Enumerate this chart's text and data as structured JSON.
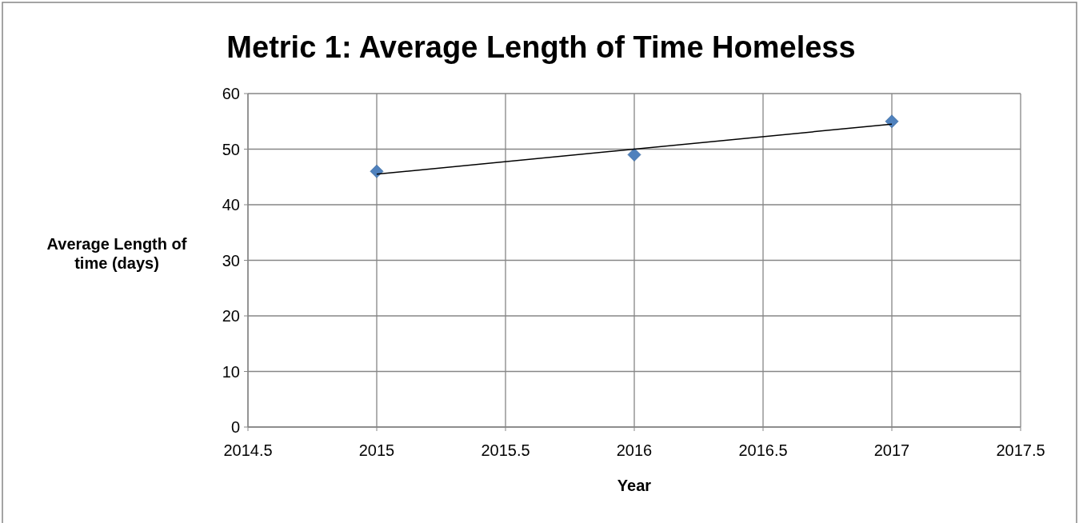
{
  "chart_data": {
    "type": "scatter",
    "title": "Metric 1: Average Length of Time Homeless",
    "xlabel": "Year",
    "ylabel": "Average Length of time (days)",
    "series": [
      {
        "color": "#4f81bd",
        "marker": "diamond",
        "x": [
          2015,
          2016,
          2017
        ],
        "values": [
          46,
          49,
          55
        ]
      },
      {
        "type": "line",
        "color": "#000000",
        "marker": "none",
        "x": [
          2015,
          2017
        ],
        "values": [
          45.5,
          54.5
        ]
      }
    ],
    "xlim": [
      2014.5,
      2017.5
    ],
    "xticks": [
      2014.5,
      2015,
      2015.5,
      2016,
      2016.5,
      2017,
      2017.5
    ],
    "ylim": [
      0,
      60
    ],
    "yticks": [
      0,
      10,
      20,
      30,
      40,
      50,
      60
    ],
    "grid": true
  }
}
